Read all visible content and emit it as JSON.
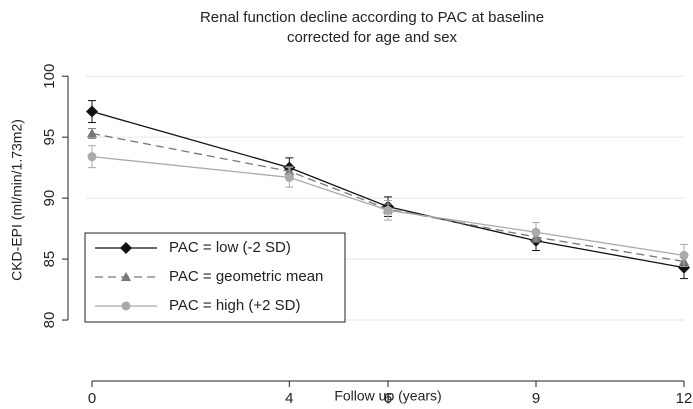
{
  "chart_data": {
    "type": "line",
    "title": [
      "Renal function decline according to PAC at baseline",
      "corrected for age and sex"
    ],
    "x_label": "Follow up (years)",
    "y_label": "CKD-EPI (ml/min/1.73m2)",
    "x": [
      0,
      4,
      6,
      9,
      12
    ],
    "xlim": [
      0,
      12
    ],
    "xticks": [
      0,
      4,
      6,
      9,
      12
    ],
    "ylim": [
      75,
      101
    ],
    "yticks": [
      80,
      85,
      90,
      95,
      100
    ],
    "grid": true,
    "legend": "lower left",
    "series": [
      {
        "name": "PAC = low (-2 SD)",
        "color": "#111111",
        "marker": "diamond",
        "dash": "solid",
        "values": [
          97.1,
          92.5,
          89.3,
          86.5,
          84.3
        ],
        "errors": [
          0.9,
          0.8,
          0.8,
          0.8,
          0.9
        ]
      },
      {
        "name": "PAC = geometric mean",
        "color": "#777777",
        "marker": "triangle",
        "dash": "dashed",
        "values": [
          95.3,
          92.2,
          89.1,
          86.8,
          84.8
        ],
        "errors": [
          0.4,
          0.4,
          0.4,
          0.4,
          0.4
        ]
      },
      {
        "name": "PAC = high (+2 SD)",
        "color": "#aaaaaa",
        "marker": "circle",
        "dash": "solid",
        "values": [
          93.4,
          91.7,
          89.0,
          87.2,
          85.3
        ],
        "errors": [
          0.9,
          0.8,
          0.8,
          0.8,
          0.9
        ]
      }
    ]
  }
}
